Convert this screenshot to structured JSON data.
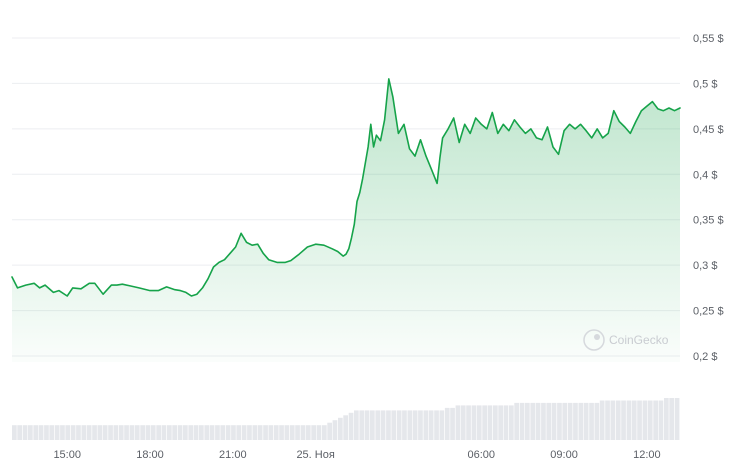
{
  "chart_data": {
    "type": "area",
    "currency_suffix": "$",
    "ylim": [
      0.2,
      0.55
    ],
    "y_ticks": [
      0.2,
      0.25,
      0.3,
      0.35,
      0.4,
      0.45,
      0.5,
      0.55
    ],
    "y_tick_labels": [
      "0,2 $",
      "0,25 $",
      "0,3 $",
      "0,35 $",
      "0,4 $",
      "0,45 $",
      "0,5 $",
      "0,55 $"
    ],
    "x_range_hours": [
      13,
      37.2
    ],
    "x_ticks": [
      {
        "hour": 15,
        "label": "15:00"
      },
      {
        "hour": 18,
        "label": "18:00"
      },
      {
        "hour": 21,
        "label": "21:00"
      },
      {
        "hour": 24,
        "label": "25. Ноя"
      },
      {
        "hour": 30,
        "label": "06:00"
      },
      {
        "hour": 33,
        "label": "09:00"
      },
      {
        "hour": 36,
        "label": "12:00"
      }
    ],
    "grid": true,
    "line_color": "#16a34a",
    "fill_color": "#16a34a",
    "volume_color": "#e5e7eb",
    "series": [
      {
        "x": [
          13.0,
          13.2,
          13.5,
          13.8,
          14.0,
          14.2,
          14.5,
          14.7,
          15.0,
          15.2,
          15.5,
          15.8,
          16.0,
          16.3,
          16.6,
          16.8,
          17.0,
          17.3,
          17.6,
          18.0,
          18.3,
          18.6,
          18.9,
          19.1,
          19.3,
          19.5,
          19.7,
          19.9,
          20.1,
          20.3,
          20.5,
          20.7,
          20.9,
          21.1,
          21.3,
          21.5,
          21.7,
          21.9,
          22.1,
          22.3,
          22.6,
          22.9,
          23.1,
          23.4,
          23.7,
          24.0,
          24.3,
          24.6,
          24.8,
          25.0,
          25.1,
          25.2,
          25.3,
          25.4,
          25.5,
          25.6,
          25.7,
          25.9,
          26.0,
          26.1,
          26.2,
          26.35,
          26.5,
          26.65,
          26.8,
          27.0,
          27.2,
          27.4,
          27.6,
          27.8,
          28.0,
          28.2,
          28.4,
          28.5,
          28.6,
          28.8,
          29.0,
          29.2,
          29.4,
          29.6,
          29.8,
          30.0,
          30.2,
          30.4,
          30.6,
          30.8,
          31.0,
          31.2,
          31.4,
          31.6,
          31.8,
          32.0,
          32.2,
          32.4,
          32.6,
          32.8,
          33.0,
          33.2,
          33.4,
          33.6,
          33.8,
          34.0,
          34.2,
          34.4,
          34.6,
          34.8,
          35.0,
          35.2,
          35.4,
          35.6,
          35.8,
          36.0,
          36.2,
          36.4,
          36.6,
          36.8,
          37.0,
          37.2
        ],
        "y": [
          0.287,
          0.275,
          0.278,
          0.28,
          0.275,
          0.278,
          0.27,
          0.272,
          0.266,
          0.275,
          0.274,
          0.28,
          0.28,
          0.268,
          0.278,
          0.278,
          0.279,
          0.277,
          0.275,
          0.272,
          0.272,
          0.276,
          0.273,
          0.272,
          0.27,
          0.266,
          0.268,
          0.275,
          0.285,
          0.298,
          0.303,
          0.306,
          0.313,
          0.32,
          0.335,
          0.325,
          0.322,
          0.323,
          0.313,
          0.306,
          0.303,
          0.303,
          0.305,
          0.312,
          0.32,
          0.323,
          0.322,
          0.318,
          0.315,
          0.31,
          0.312,
          0.318,
          0.33,
          0.345,
          0.37,
          0.38,
          0.395,
          0.43,
          0.455,
          0.43,
          0.443,
          0.437,
          0.46,
          0.505,
          0.485,
          0.445,
          0.455,
          0.428,
          0.42,
          0.438,
          0.42,
          0.405,
          0.39,
          0.418,
          0.44,
          0.45,
          0.462,
          0.435,
          0.455,
          0.445,
          0.462,
          0.455,
          0.45,
          0.468,
          0.445,
          0.455,
          0.448,
          0.46,
          0.452,
          0.445,
          0.45,
          0.44,
          0.438,
          0.452,
          0.43,
          0.422,
          0.448,
          0.455,
          0.45,
          0.455,
          0.448,
          0.44,
          0.45,
          0.44,
          0.445,
          0.47,
          0.458,
          0.452,
          0.445,
          0.458,
          0.47,
          0.475,
          0.48,
          0.472,
          0.47,
          0.473,
          0.47,
          0.473
        ]
      }
    ],
    "volume": [
      6,
      6,
      6,
      6,
      6,
      6,
      6,
      6,
      6,
      6,
      6,
      6,
      6,
      6,
      6,
      6,
      6,
      6,
      6,
      6,
      6,
      6,
      6,
      6,
      6,
      6,
      6,
      6,
      6,
      6,
      6,
      6,
      6,
      6,
      6,
      6,
      6,
      6,
      6,
      6,
      6,
      6,
      6,
      6,
      6,
      6,
      6,
      6,
      6,
      6,
      6,
      6,
      6,
      6,
      6,
      6,
      6,
      6,
      6,
      7,
      8,
      9,
      10,
      11,
      12,
      12,
      12,
      12,
      12,
      12,
      12,
      12,
      12,
      12,
      12,
      12,
      12,
      12,
      12,
      12,
      12,
      13,
      13,
      14,
      14,
      14,
      14,
      14,
      14,
      14,
      14,
      14,
      14,
      14,
      15,
      15,
      15,
      15,
      15,
      15,
      15,
      15,
      15,
      15,
      15,
      15,
      15,
      15,
      15,
      15,
      16,
      16,
      16,
      16,
      16,
      16,
      16,
      16,
      16,
      16,
      16,
      16,
      17,
      17,
      17
    ],
    "watermark": "CoinGecko"
  }
}
